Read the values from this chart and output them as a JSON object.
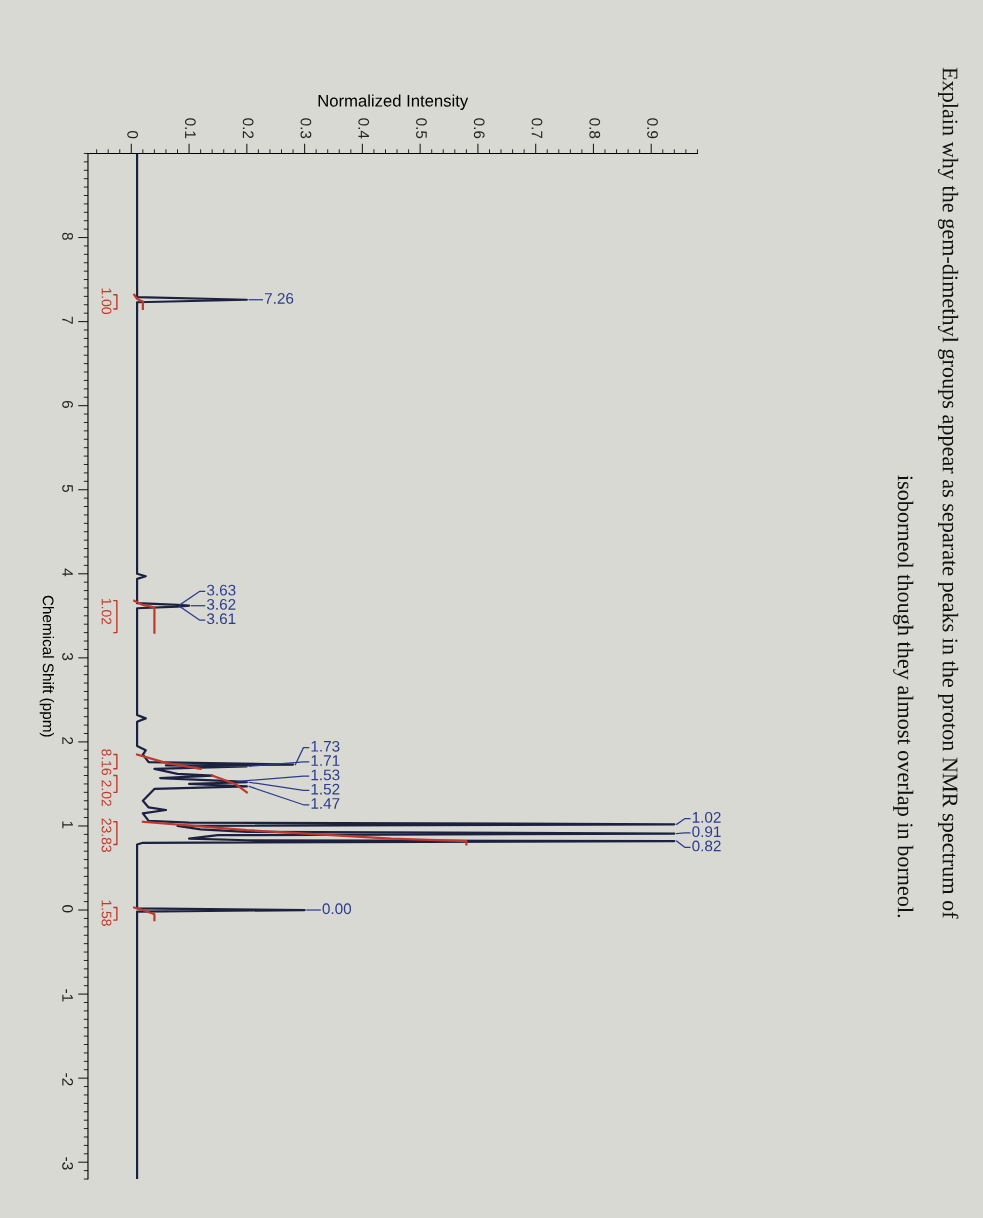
{
  "chart_data": {
    "type": "line",
    "title": "Explain why the gem-dimethyl groups appear as separate peaks in the proton NMR spectrum of\nisoborneol though they almost overlap in borneol.",
    "xlabel": "Normalized Intensity",
    "ylabel": "Chemical Shift (ppm)",
    "orientation": "horizontal",
    "xlim": [
      -0.075,
      0.98
    ],
    "xticks": [
      0,
      0.1,
      0.2,
      0.3,
      0.4,
      0.5,
      0.6,
      0.7,
      0.8,
      0.9
    ],
    "ylim": [
      -3.2,
      9.0
    ],
    "yticks": [
      8,
      7,
      6,
      5,
      4,
      3,
      2,
      1,
      0,
      {
        "value": -1,
        "label": "-1"
      },
      {
        "value": -2,
        "label": "-2"
      },
      {
        "value": -3,
        "label": "-3"
      }
    ],
    "grid": false,
    "legend": false,
    "marker": "none",
    "line_style": "solid",
    "series": [
      {
        "color": "#1c2140",
        "x": [
          9.0,
          7.29,
          7.26,
          7.23,
          4.0,
          3.97,
          3.94,
          3.65,
          3.63,
          3.62,
          3.61,
          3.59,
          2.32,
          2.28,
          2.24,
          1.95,
          1.9,
          1.85,
          1.76,
          1.73,
          1.72,
          1.71,
          1.68,
          1.62,
          1.6,
          1.57,
          1.53,
          1.52,
          1.5,
          1.47,
          1.44,
          1.3,
          1.22,
          1.19,
          1.15,
          1.06,
          1.04,
          1.02,
          1.0,
          0.96,
          0.93,
          0.91,
          0.89,
          0.85,
          0.83,
          0.82,
          0.8,
          0.78,
          0.02,
          0.0,
          -0.02,
          -3.2
        ],
        "values": [
          0.01,
          0.01,
          0.2,
          0.01,
          0.01,
          0.025,
          0.01,
          0.01,
          0.08,
          0.1,
          0.08,
          0.01,
          0.01,
          0.025,
          0.01,
          0.01,
          0.025,
          0.02,
          0.03,
          0.28,
          0.06,
          0.2,
          0.04,
          0.08,
          0.14,
          0.05,
          0.18,
          0.2,
          0.1,
          0.2,
          0.04,
          0.02,
          0.03,
          0.06,
          0.02,
          0.03,
          0.1,
          0.94,
          0.08,
          0.12,
          0.2,
          0.94,
          0.15,
          0.1,
          0.2,
          0.94,
          0.02,
          0.01,
          0.01,
          0.3,
          0.01,
          0.01
        ]
      },
      {
        "color": "#c0392b",
        "x": [
          7.32,
          7.27,
          7.24,
          7.15,
          5.0,
          3.68,
          3.63,
          3.6,
          3.3,
          2.5,
          1.85,
          1.75,
          1.68,
          1.64,
          1.6,
          1.5,
          1.4,
          1.2,
          1.05,
          0.95,
          0.85,
          0.82,
          0.78,
          0.4,
          0.03,
          0.0,
          -0.05,
          -0.12
        ],
        "values": [
          0.005,
          0.01,
          0.02,
          0.02,
          null,
          0.005,
          0.02,
          0.04,
          0.04,
          null,
          0.01,
          0.06,
          0.12,
          null,
          0.14,
          0.18,
          0.2,
          null,
          0.02,
          0.2,
          0.45,
          0.58,
          0.58,
          null,
          0.005,
          0.02,
          0.04,
          0.04
        ]
      }
    ],
    "annotations": [
      {
        "text": "7.26",
        "x": 0.2,
        "y": 7.26
      },
      {
        "text": "3.63",
        "x": 0.08,
        "y": 3.63
      },
      {
        "text": "3.62",
        "x": 0.1,
        "y": 3.62
      },
      {
        "text": "3.61",
        "x": 0.08,
        "y": 3.61
      },
      {
        "text": "1.73",
        "x": 0.28,
        "y": 1.73
      },
      {
        "text": "1.71",
        "x": 0.2,
        "y": 1.71
      },
      {
        "text": "1.53",
        "x": 0.18,
        "y": 1.53
      },
      {
        "text": "1.52",
        "x": 0.2,
        "y": 1.52
      },
      {
        "text": "1.47",
        "x": 0.2,
        "y": 1.47
      },
      {
        "text": "1.02",
        "x": 0.94,
        "y": 1.02
      },
      {
        "text": "0.91",
        "x": 0.94,
        "y": 0.91
      },
      {
        "text": "0.82",
        "x": 0.94,
        "y": 0.82
      },
      {
        "text": "0.00",
        "x": 0.3,
        "y": 0.0
      },
      "1.00",
      "1.02",
      "8.16",
      "2.02",
      "23.83",
      "1.58"
    ]
  }
}
